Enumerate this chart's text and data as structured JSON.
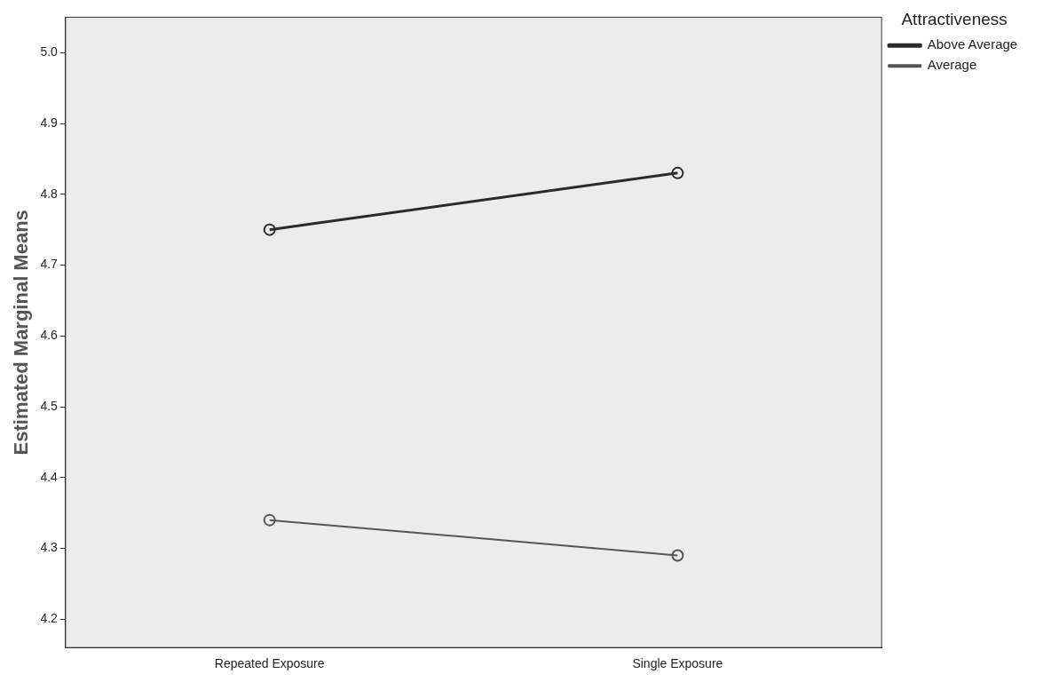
{
  "chart_data": {
    "type": "line",
    "ylabel": "Estimated Marginal Means",
    "legend_title": "Attractiveness",
    "categories": [
      "Repeated Exposure",
      "Single Exposure"
    ],
    "series": [
      {
        "name": "Above Average",
        "color": "#2b2b2b",
        "values": [
          4.75,
          4.83
        ]
      },
      {
        "name": "Average",
        "color": "#555555",
        "values": [
          4.34,
          4.29
        ]
      }
    ],
    "ylim": [
      4.16,
      5.05
    ],
    "yticks": [
      4.2,
      4.3,
      4.4,
      4.5,
      4.6,
      4.7,
      4.8,
      4.9,
      {
        "value": 5,
        "label": "5.0"
      }
    ],
    "grid": false,
    "legend": "top right",
    "marker": "circle",
    "line_style": "solid"
  }
}
